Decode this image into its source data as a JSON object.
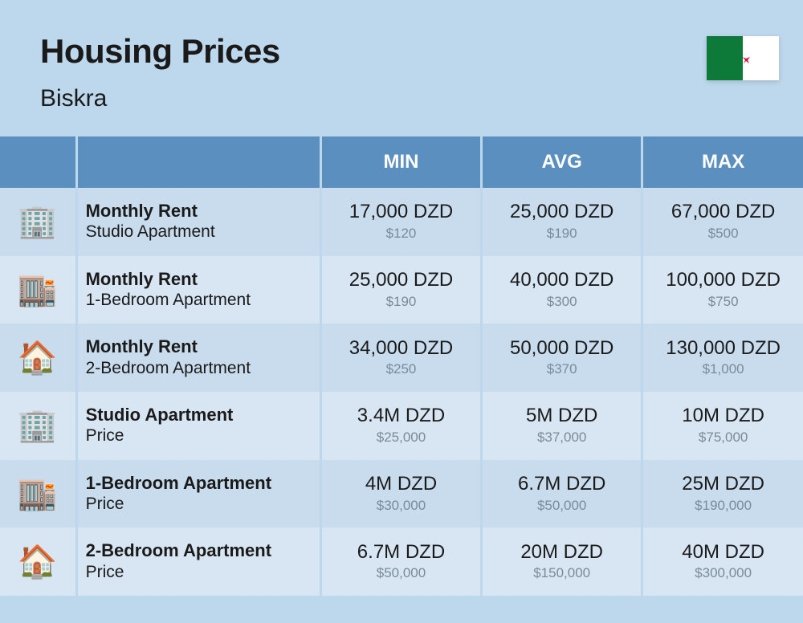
{
  "header": {
    "title": "Housing Prices",
    "subtitle": "Biskra"
  },
  "flag": {
    "left_color": "#0d7a3a",
    "right_color": "#ffffff",
    "emblem_color": "#d21034"
  },
  "columns": [
    "MIN",
    "AVG",
    "MAX"
  ],
  "colors": {
    "page_bg": "#bdd7ed",
    "header_bg": "#5a8fbf",
    "header_text": "#ffffff",
    "row_even": "#c8dced",
    "row_odd": "#d7e6f2",
    "text_primary": "#1a1a1a",
    "text_secondary": "#7a8a9a"
  },
  "typography": {
    "title_size": 42,
    "subtitle_size": 30,
    "header_size": 24,
    "label_main_size": 22,
    "label_sub_size": 21,
    "val_main_size": 24,
    "val_sub_size": 17
  },
  "rows": [
    {
      "icon": "🏢",
      "label_main": "Monthly Rent",
      "label_sub": "Studio Apartment",
      "min_main": "17,000 DZD",
      "min_sub": "$120",
      "avg_main": "25,000 DZD",
      "avg_sub": "$190",
      "max_main": "67,000 DZD",
      "max_sub": "$500"
    },
    {
      "icon": "🏬",
      "label_main": "Monthly Rent",
      "label_sub": "1-Bedroom Apartment",
      "min_main": "25,000 DZD",
      "min_sub": "$190",
      "avg_main": "40,000 DZD",
      "avg_sub": "$300",
      "max_main": "100,000 DZD",
      "max_sub": "$750"
    },
    {
      "icon": "🏠",
      "label_main": "Monthly Rent",
      "label_sub": "2-Bedroom Apartment",
      "min_main": "34,000 DZD",
      "min_sub": "$250",
      "avg_main": "50,000 DZD",
      "avg_sub": "$370",
      "max_main": "130,000 DZD",
      "max_sub": "$1,000"
    },
    {
      "icon": "🏢",
      "label_main": "Studio Apartment",
      "label_sub": "Price",
      "min_main": "3.4M DZD",
      "min_sub": "$25,000",
      "avg_main": "5M DZD",
      "avg_sub": "$37,000",
      "max_main": "10M DZD",
      "max_sub": "$75,000"
    },
    {
      "icon": "🏬",
      "label_main": "1-Bedroom Apartment",
      "label_sub": "Price",
      "min_main": "4M DZD",
      "min_sub": "$30,000",
      "avg_main": "6.7M DZD",
      "avg_sub": "$50,000",
      "max_main": "25M DZD",
      "max_sub": "$190,000"
    },
    {
      "icon": "🏠",
      "label_main": "2-Bedroom Apartment",
      "label_sub": "Price",
      "min_main": "6.7M DZD",
      "min_sub": "$50,000",
      "avg_main": "20M DZD",
      "avg_sub": "$150,000",
      "max_main": "40M DZD",
      "max_sub": "$300,000"
    }
  ]
}
